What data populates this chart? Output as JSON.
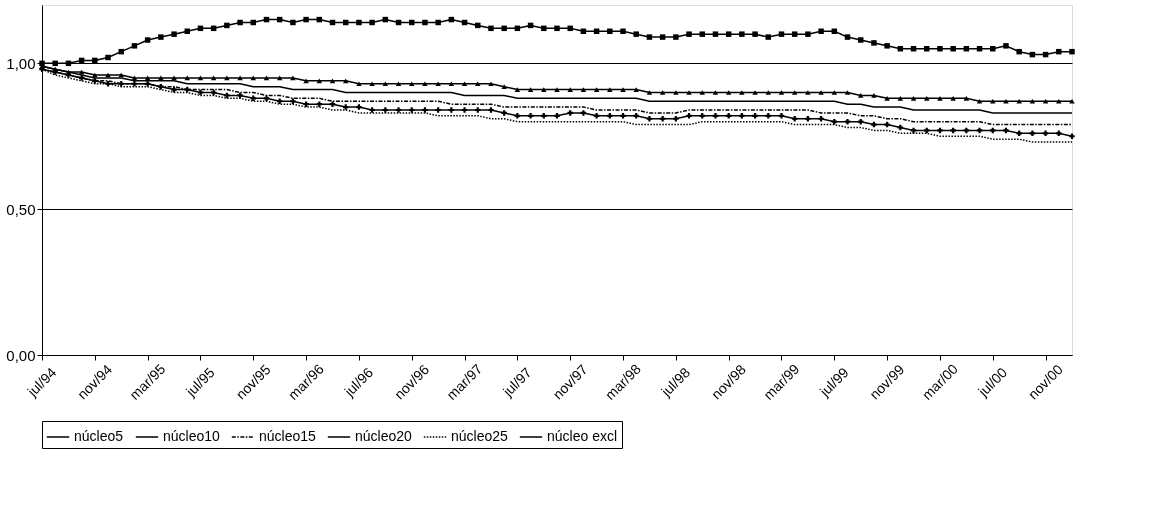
{
  "chart_data": {
    "type": "line",
    "categories": [
      "jul/94",
      null,
      null,
      null,
      "nov/94",
      null,
      null,
      null,
      "mar/95",
      null,
      null,
      null,
      "jul/95",
      null,
      null,
      null,
      "nov/95",
      null,
      null,
      null,
      "mar/96",
      null,
      null,
      null,
      "jul/96",
      null,
      null,
      null,
      "nov/96",
      null,
      null,
      null,
      "mar/97",
      null,
      null,
      null,
      "jul/97",
      null,
      null,
      null,
      "nov/97",
      null,
      null,
      null,
      "mar/98",
      null,
      null,
      null,
      "jul/98",
      null,
      null,
      null,
      "nov/98",
      null,
      null,
      null,
      "mar/99",
      null,
      null,
      null,
      "jul/99",
      null,
      null,
      null,
      "nov/99",
      null,
      null,
      null,
      "mar/00",
      null,
      null,
      null,
      "jul/00",
      null,
      null,
      null,
      "nov/00",
      null,
      null
    ],
    "ylim": [
      0,
      1.2
    ],
    "yticks": [
      {
        "value": 0,
        "label": "0,00"
      },
      {
        "value": 0.5,
        "label": "0,50"
      },
      {
        "value": 1,
        "label": "1,00"
      }
    ],
    "grid": "y",
    "legend": "bottom",
    "series": [
      {
        "name": "núcleo5",
        "color": "#000000",
        "marker": "triangle",
        "line_style": "solid",
        "values": [
          0.99,
          0.98,
          0.97,
          0.97,
          0.96,
          0.96,
          0.96,
          0.95,
          0.95,
          0.95,
          0.95,
          0.95,
          0.95,
          0.95,
          0.95,
          0.95,
          0.95,
          0.95,
          0.95,
          0.95,
          0.94,
          0.94,
          0.94,
          0.94,
          0.93,
          0.93,
          0.93,
          0.93,
          0.93,
          0.93,
          0.93,
          0.93,
          0.93,
          0.93,
          0.93,
          0.92,
          0.91,
          0.91,
          0.91,
          0.91,
          0.91,
          0.91,
          0.91,
          0.91,
          0.91,
          0.91,
          0.9,
          0.9,
          0.9,
          0.9,
          0.9,
          0.9,
          0.9,
          0.9,
          0.9,
          0.9,
          0.9,
          0.9,
          0.9,
          0.9,
          0.9,
          0.9,
          0.89,
          0.89,
          0.88,
          0.88,
          0.88,
          0.88,
          0.88,
          0.88,
          0.88,
          0.87,
          0.87,
          0.87,
          0.87,
          0.87,
          0.87,
          0.87,
          0.87
        ]
      },
      {
        "name": "núcleo10",
        "color": "#000000",
        "marker": "none",
        "line_style": "solid",
        "values": [
          0.99,
          0.98,
          0.97,
          0.96,
          0.95,
          0.95,
          0.95,
          0.94,
          0.94,
          0.94,
          0.94,
          0.93,
          0.93,
          0.93,
          0.93,
          0.93,
          0.92,
          0.92,
          0.92,
          0.91,
          0.91,
          0.91,
          0.91,
          0.9,
          0.9,
          0.9,
          0.9,
          0.9,
          0.9,
          0.9,
          0.9,
          0.9,
          0.89,
          0.89,
          0.89,
          0.89,
          0.88,
          0.88,
          0.88,
          0.88,
          0.88,
          0.88,
          0.88,
          0.88,
          0.88,
          0.88,
          0.87,
          0.87,
          0.87,
          0.87,
          0.87,
          0.87,
          0.87,
          0.87,
          0.87,
          0.87,
          0.87,
          0.87,
          0.87,
          0.87,
          0.87,
          0.86,
          0.86,
          0.85,
          0.85,
          0.85,
          0.84,
          0.84,
          0.84,
          0.84,
          0.84,
          0.84,
          0.83,
          0.83,
          0.83,
          0.83,
          0.83,
          0.83,
          0.83
        ]
      },
      {
        "name": "núcleo15",
        "color": "#000000",
        "marker": "none",
        "line_style": "dashed",
        "values": [
          0.98,
          0.97,
          0.96,
          0.95,
          0.94,
          0.94,
          0.93,
          0.93,
          0.93,
          0.92,
          0.92,
          0.91,
          0.91,
          0.91,
          0.91,
          0.9,
          0.9,
          0.89,
          0.89,
          0.88,
          0.88,
          0.88,
          0.87,
          0.87,
          0.87,
          0.87,
          0.87,
          0.87,
          0.87,
          0.87,
          0.87,
          0.86,
          0.86,
          0.86,
          0.86,
          0.85,
          0.85,
          0.85,
          0.85,
          0.85,
          0.85,
          0.85,
          0.84,
          0.84,
          0.84,
          0.84,
          0.83,
          0.83,
          0.83,
          0.84,
          0.84,
          0.84,
          0.84,
          0.84,
          0.84,
          0.84,
          0.84,
          0.84,
          0.84,
          0.83,
          0.83,
          0.83,
          0.82,
          0.82,
          0.81,
          0.81,
          0.8,
          0.8,
          0.8,
          0.8,
          0.8,
          0.8,
          0.79,
          0.79,
          0.79,
          0.79,
          0.79,
          0.79,
          0.79
        ]
      },
      {
        "name": "núcleo20",
        "color": "#000000",
        "marker": "cross",
        "line_style": "solid",
        "values": [
          0.98,
          0.97,
          0.96,
          0.95,
          0.94,
          0.93,
          0.93,
          0.93,
          0.93,
          0.92,
          0.91,
          0.91,
          0.9,
          0.9,
          0.89,
          0.89,
          0.88,
          0.88,
          0.87,
          0.87,
          0.86,
          0.86,
          0.86,
          0.85,
          0.85,
          0.84,
          0.84,
          0.84,
          0.84,
          0.84,
          0.84,
          0.84,
          0.84,
          0.84,
          0.84,
          0.83,
          0.82,
          0.82,
          0.82,
          0.82,
          0.83,
          0.83,
          0.82,
          0.82,
          0.82,
          0.82,
          0.81,
          0.81,
          0.81,
          0.82,
          0.82,
          0.82,
          0.82,
          0.82,
          0.82,
          0.82,
          0.82,
          0.81,
          0.81,
          0.81,
          0.8,
          0.8,
          0.8,
          0.79,
          0.79,
          0.78,
          0.77,
          0.77,
          0.77,
          0.77,
          0.77,
          0.77,
          0.77,
          0.77,
          0.76,
          0.76,
          0.76,
          0.76,
          0.75
        ]
      },
      {
        "name": "núcleo25",
        "color": "#000000",
        "marker": "none",
        "line_style": "dotted",
        "values": [
          0.98,
          0.96,
          0.95,
          0.94,
          0.93,
          0.93,
          0.92,
          0.92,
          0.92,
          0.91,
          0.9,
          0.9,
          0.89,
          0.89,
          0.88,
          0.88,
          0.87,
          0.87,
          0.86,
          0.86,
          0.85,
          0.85,
          0.84,
          0.84,
          0.83,
          0.83,
          0.83,
          0.83,
          0.83,
          0.83,
          0.82,
          0.82,
          0.82,
          0.82,
          0.81,
          0.81,
          0.8,
          0.8,
          0.8,
          0.8,
          0.8,
          0.8,
          0.8,
          0.8,
          0.8,
          0.79,
          0.79,
          0.79,
          0.79,
          0.79,
          0.8,
          0.8,
          0.8,
          0.8,
          0.8,
          0.8,
          0.8,
          0.79,
          0.79,
          0.79,
          0.79,
          0.78,
          0.78,
          0.77,
          0.77,
          0.76,
          0.76,
          0.76,
          0.75,
          0.75,
          0.75,
          0.75,
          0.74,
          0.74,
          0.74,
          0.73,
          0.73,
          0.73,
          0.73
        ]
      },
      {
        "name": "núcleo excl",
        "color": "#000000",
        "marker": "square",
        "line_style": "solid",
        "values": [
          1.0,
          1.0,
          1.0,
          1.01,
          1.01,
          1.02,
          1.04,
          1.06,
          1.08,
          1.09,
          1.1,
          1.11,
          1.12,
          1.12,
          1.13,
          1.14,
          1.14,
          1.15,
          1.15,
          1.14,
          1.15,
          1.15,
          1.14,
          1.14,
          1.14,
          1.14,
          1.15,
          1.14,
          1.14,
          1.14,
          1.14,
          1.15,
          1.14,
          1.13,
          1.12,
          1.12,
          1.12,
          1.13,
          1.12,
          1.12,
          1.12,
          1.11,
          1.11,
          1.11,
          1.11,
          1.1,
          1.09,
          1.09,
          1.09,
          1.1,
          1.1,
          1.1,
          1.1,
          1.1,
          1.1,
          1.09,
          1.1,
          1.1,
          1.1,
          1.11,
          1.11,
          1.09,
          1.08,
          1.07,
          1.06,
          1.05,
          1.05,
          1.05,
          1.05,
          1.05,
          1.05,
          1.05,
          1.05,
          1.06,
          1.04,
          1.03,
          1.03,
          1.04,
          1.04
        ]
      }
    ]
  }
}
